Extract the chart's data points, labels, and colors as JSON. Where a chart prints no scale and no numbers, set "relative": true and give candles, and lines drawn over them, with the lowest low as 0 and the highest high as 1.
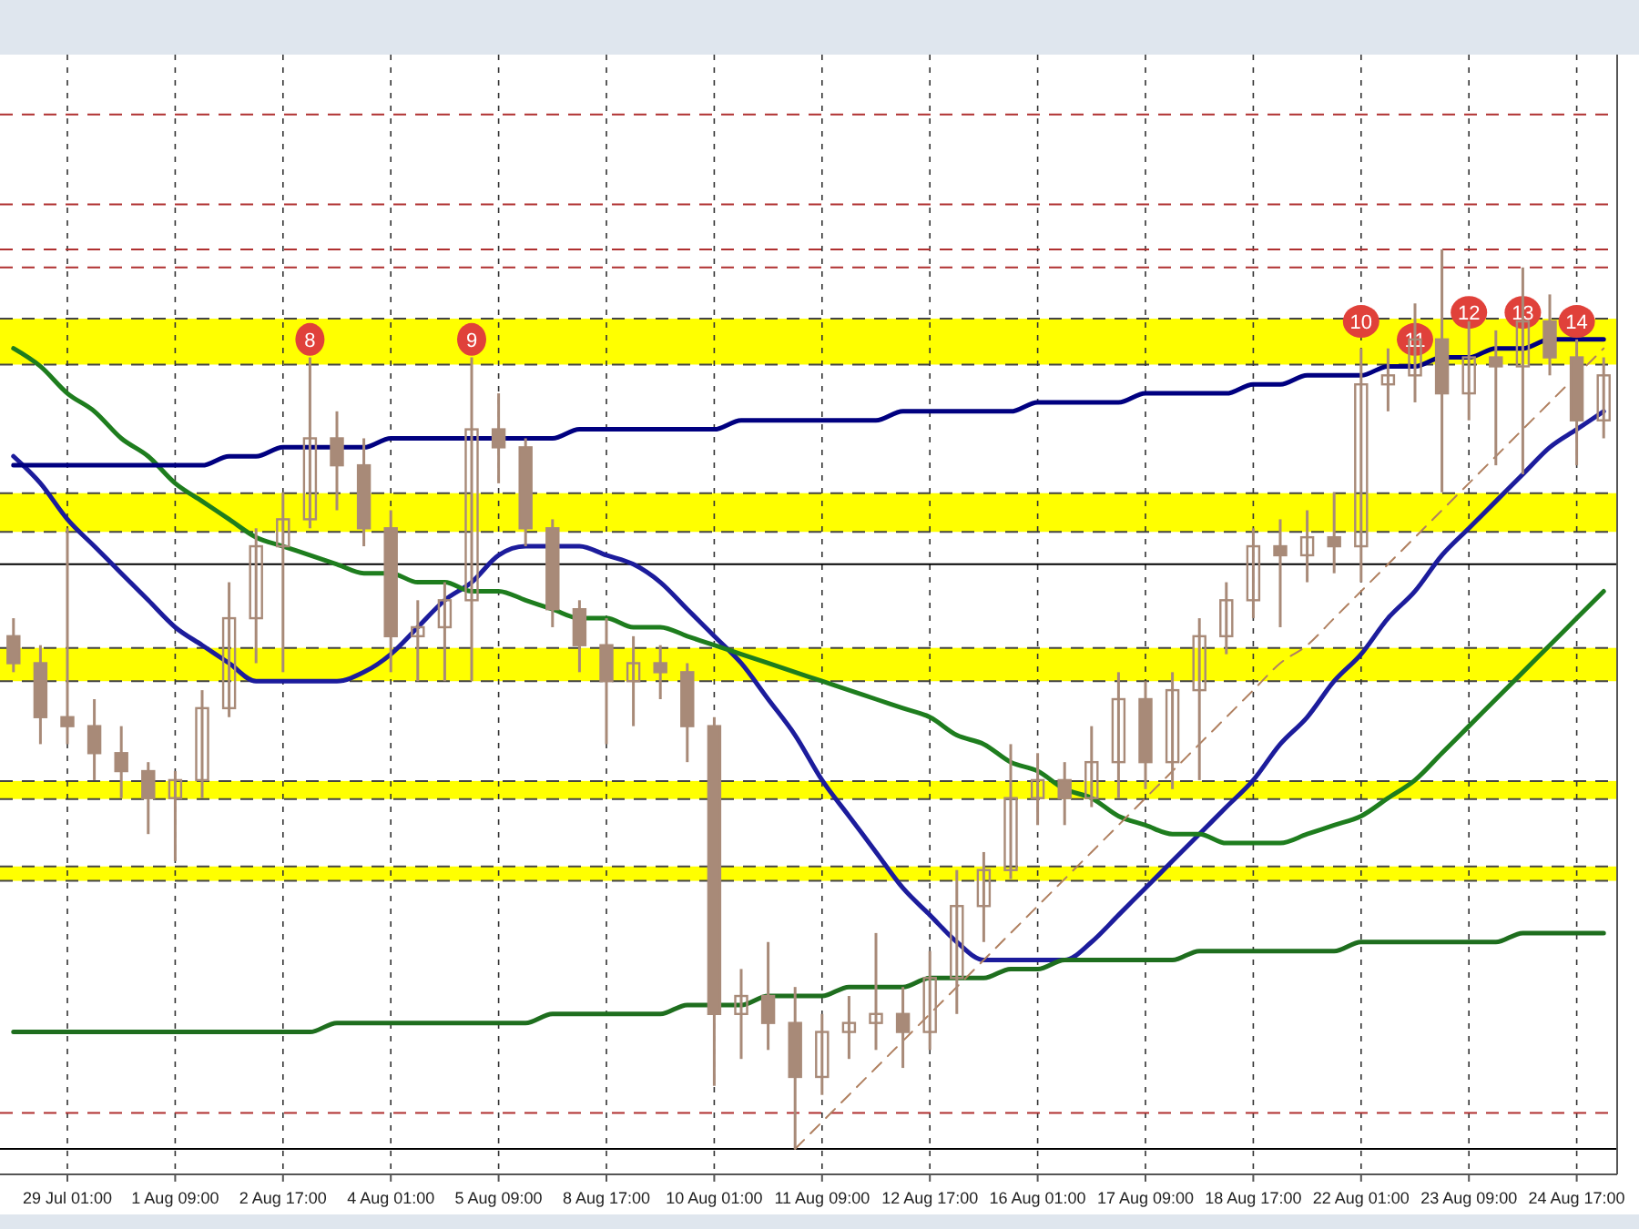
{
  "chart_data": {
    "type": "candlestick",
    "relative": true,
    "grid": "x",
    "color": "#a88a78",
    "categories": [
      null,
      null,
      "29 Jul 01:00",
      null,
      null,
      null,
      "1 Aug 09:00",
      null,
      null,
      null,
      "2 Aug 17:00",
      null,
      null,
      null,
      "4 Aug 01:00",
      null,
      null,
      null,
      "5 Aug 09:00",
      null,
      null,
      null,
      "8 Aug 17:00",
      null,
      null,
      null,
      "10 Aug 01:00",
      null,
      null,
      null,
      "11 Aug 09:00",
      null,
      null,
      null,
      "12 Aug 17:00",
      null,
      null,
      null,
      "16 Aug 01:00",
      null,
      null,
      null,
      "17 Aug 09:00",
      null,
      null,
      null,
      "18 Aug 17:00",
      null,
      null,
      null,
      "22 Aug 01:00",
      null,
      null,
      null,
      "23 Aug 09:00",
      null,
      null,
      null,
      "24 Aug 17:00",
      null
    ],
    "ohlc": [
      [
        0.57,
        0.59,
        0.53,
        0.54
      ],
      [
        0.54,
        0.56,
        0.45,
        0.48
      ],
      [
        0.48,
        0.69,
        0.45,
        0.47
      ],
      [
        0.47,
        0.5,
        0.41,
        0.44
      ],
      [
        0.44,
        0.47,
        0.39,
        0.42
      ],
      [
        0.42,
        0.43,
        0.35,
        0.39
      ],
      [
        0.39,
        0.42,
        0.32,
        0.41
      ],
      [
        0.41,
        0.51,
        0.39,
        0.49
      ],
      [
        0.49,
        0.63,
        0.48,
        0.59
      ],
      [
        0.59,
        0.69,
        0.54,
        0.67
      ],
      [
        0.67,
        0.73,
        0.53,
        0.7
      ],
      [
        0.7,
        0.88,
        0.69,
        0.79
      ],
      [
        0.79,
        0.82,
        0.71,
        0.76
      ],
      [
        0.76,
        0.79,
        0.67,
        0.69
      ],
      [
        0.69,
        0.71,
        0.53,
        0.57
      ],
      [
        0.57,
        0.61,
        0.52,
        0.58
      ],
      [
        0.58,
        0.63,
        0.52,
        0.61
      ],
      [
        0.61,
        0.88,
        0.52,
        0.8
      ],
      [
        0.8,
        0.84,
        0.74,
        0.78
      ],
      [
        0.78,
        0.79,
        0.67,
        0.69
      ],
      [
        0.69,
        0.7,
        0.58,
        0.6
      ],
      [
        0.6,
        0.61,
        0.53,
        0.56
      ],
      [
        0.56,
        0.59,
        0.45,
        0.52
      ],
      [
        0.52,
        0.57,
        0.47,
        0.54
      ],
      [
        0.54,
        0.56,
        0.5,
        0.53
      ],
      [
        0.53,
        0.54,
        0.43,
        0.47
      ],
      [
        0.47,
        0.48,
        0.07,
        0.15
      ],
      [
        0.15,
        0.2,
        0.1,
        0.17
      ],
      [
        0.17,
        0.23,
        0.11,
        0.14
      ],
      [
        0.14,
        0.18,
        0,
        0.08
      ],
      [
        0.08,
        0.15,
        0.06,
        0.13
      ],
      [
        0.13,
        0.17,
        0.1,
        0.14
      ],
      [
        0.14,
        0.24,
        0.11,
        0.15
      ],
      [
        0.15,
        0.18,
        0.09,
        0.13
      ],
      [
        0.13,
        0.22,
        0.11,
        0.19
      ],
      [
        0.19,
        0.31,
        0.15,
        0.27
      ],
      [
        0.27,
        0.33,
        0.23,
        0.31
      ],
      [
        0.31,
        0.45,
        0.3,
        0.39
      ],
      [
        0.39,
        0.44,
        0.36,
        0.41
      ],
      [
        0.41,
        0.43,
        0.36,
        0.39
      ],
      [
        0.39,
        0.47,
        0.38,
        0.43
      ],
      [
        0.43,
        0.53,
        0.39,
        0.5
      ],
      [
        0.5,
        0.52,
        0.4,
        0.43
      ],
      [
        0.43,
        0.53,
        0.4,
        0.51
      ],
      [
        0.51,
        0.59,
        0.41,
        0.57
      ],
      [
        0.57,
        0.63,
        0.55,
        0.61
      ],
      [
        0.61,
        0.69,
        0.59,
        0.67
      ],
      [
        0.67,
        0.7,
        0.58,
        0.66
      ],
      [
        0.66,
        0.71,
        0.63,
        0.68
      ],
      [
        0.68,
        0.73,
        0.64,
        0.67
      ],
      [
        0.67,
        0.89,
        0.63,
        0.85
      ],
      [
        0.85,
        0.89,
        0.82,
        0.86
      ],
      [
        0.86,
        0.94,
        0.83,
        0.9
      ],
      [
        0.9,
        1.0,
        0.73,
        0.84
      ],
      [
        0.84,
        0.92,
        0.81,
        0.88
      ],
      [
        0.88,
        0.91,
        0.76,
        0.87
      ],
      [
        0.87,
        0.98,
        0.75,
        0.92
      ],
      [
        0.92,
        0.95,
        0.86,
        0.88
      ],
      [
        0.88,
        0.9,
        0.76,
        0.81
      ],
      [
        0.81,
        0.88,
        0.79,
        0.86
      ]
    ],
    "series": [
      {
        "type": "line",
        "color": "#1c1c9c",
        "values": [
          0.77,
          0.74,
          0.7,
          0.67,
          0.64,
          0.61,
          0.58,
          0.56,
          0.54,
          0.52,
          0.52,
          0.52,
          0.52,
          0.53,
          0.55,
          0.58,
          0.61,
          0.63,
          0.66,
          0.67,
          0.67,
          0.67,
          0.66,
          0.65,
          0.63,
          0.6,
          0.57,
          0.54,
          0.5,
          0.46,
          0.41,
          0.37,
          0.33,
          0.29,
          0.26,
          0.23,
          0.21,
          0.21,
          0.21,
          0.21,
          0.23,
          0.26,
          0.29,
          0.32,
          0.35,
          0.38,
          0.41,
          0.45,
          0.48,
          0.52,
          0.55,
          0.59,
          0.62,
          0.66,
          0.69,
          0.72,
          0.75,
          0.78,
          0.8,
          0.82
        ]
      },
      {
        "type": "line",
        "color": "#1e7d1e",
        "values": [
          0.89,
          0.87,
          0.84,
          0.82,
          0.79,
          0.77,
          0.74,
          0.72,
          0.7,
          0.68,
          0.67,
          0.66,
          0.65,
          0.64,
          0.64,
          0.63,
          0.63,
          0.62,
          0.62,
          0.61,
          0.6,
          0.59,
          0.59,
          0.58,
          0.58,
          0.57,
          0.56,
          0.55,
          0.54,
          0.53,
          0.52,
          0.51,
          0.5,
          0.49,
          0.48,
          0.46,
          0.45,
          0.43,
          0.42,
          0.4,
          0.39,
          0.37,
          0.36,
          0.35,
          0.35,
          0.34,
          0.34,
          0.34,
          0.35,
          0.36,
          0.37,
          0.39,
          0.41,
          0.44,
          0.47,
          0.5,
          0.53,
          0.56,
          0.59,
          0.62
        ]
      },
      {
        "type": "line",
        "color": "#000080",
        "values": [
          0.76,
          0.76,
          0.76,
          0.76,
          0.76,
          0.76,
          0.76,
          0.76,
          0.77,
          0.77,
          0.78,
          0.78,
          0.78,
          0.78,
          0.79,
          0.79,
          0.79,
          0.79,
          0.79,
          0.79,
          0.79,
          0.8,
          0.8,
          0.8,
          0.8,
          0.8,
          0.8,
          0.81,
          0.81,
          0.81,
          0.81,
          0.81,
          0.81,
          0.82,
          0.82,
          0.82,
          0.82,
          0.82,
          0.83,
          0.83,
          0.83,
          0.83,
          0.84,
          0.84,
          0.84,
          0.84,
          0.85,
          0.85,
          0.86,
          0.86,
          0.86,
          0.87,
          0.87,
          0.88,
          0.88,
          0.89,
          0.89,
          0.9,
          0.9,
          0.9
        ]
      },
      {
        "type": "line",
        "color": "#1e6e1e",
        "values": [
          0.13,
          0.13,
          0.13,
          0.13,
          0.13,
          0.13,
          0.13,
          0.13,
          0.13,
          0.13,
          0.13,
          0.13,
          0.14,
          0.14,
          0.14,
          0.14,
          0.14,
          0.14,
          0.14,
          0.14,
          0.15,
          0.15,
          0.15,
          0.15,
          0.15,
          0.16,
          0.16,
          0.16,
          0.17,
          0.17,
          0.17,
          0.18,
          0.18,
          0.18,
          0.19,
          0.19,
          0.19,
          0.2,
          0.2,
          0.21,
          0.21,
          0.21,
          0.21,
          0.21,
          0.22,
          0.22,
          0.22,
          0.22,
          0.22,
          0.22,
          0.23,
          0.23,
          0.23,
          0.23,
          0.23,
          0.23,
          0.24,
          0.24,
          0.24,
          0.24
        ]
      },
      {
        "type": "line",
        "color": "#b08060",
        "line_style": "dashed",
        "values": [
          null,
          null,
          null,
          null,
          null,
          null,
          null,
          null,
          null,
          null,
          null,
          null,
          null,
          null,
          null,
          null,
          null,
          null,
          null,
          null,
          null,
          null,
          null,
          null,
          null,
          null,
          null,
          null,
          null,
          0,
          0.03,
          0.06,
          0.09,
          0.12,
          0.15,
          0.18,
          0.21,
          0.24,
          0.27,
          0.3,
          0.33,
          0.36,
          0.39,
          0.42,
          0.45,
          0.48,
          0.51,
          0.54,
          0.56,
          0.59,
          0.62,
          0.65,
          0.68,
          0.71,
          0.74,
          0.77,
          0.8,
          0.83,
          0.86,
          0.89
        ]
      }
    ],
    "bands": [
      {
        "axis": "y",
        "from": 0.872,
        "to": 0.923,
        "color": "#ffff00"
      },
      {
        "axis": "y",
        "from": 0.686,
        "to": 0.729,
        "color": "#ffff00"
      },
      {
        "axis": "y",
        "from": 0.52,
        "to": 0.557,
        "color": "#ffff00"
      },
      {
        "axis": "y",
        "from": 0.389,
        "to": 0.409,
        "color": "#ffff00"
      },
      {
        "axis": "y",
        "from": 0.298,
        "to": 0.314,
        "color": "#ffff00"
      }
    ],
    "ref_lines": [
      {
        "axis": "y",
        "value": 1.15,
        "color": "#b03030",
        "line_style": "dashed"
      },
      {
        "axis": "y",
        "value": 1.05,
        "color": "#b03030",
        "line_style": "dashed"
      },
      {
        "axis": "y",
        "value": 1.0,
        "color": "#b03030",
        "line_style": "dashed"
      },
      {
        "axis": "y",
        "value": 0.98,
        "color": "#b03030",
        "line_style": "dashed"
      },
      {
        "axis": "y",
        "value": 0.04,
        "color": "#b03030",
        "line_style": "dashed"
      },
      {
        "axis": "y",
        "value": 0.65,
        "color": "#000000",
        "line_style": "solid"
      },
      {
        "axis": "y",
        "value": 0,
        "color": "#000000",
        "line_style": "solid"
      }
    ],
    "annotations": [
      {
        "text": "8",
        "y": 0.9
      },
      {
        "text": "9",
        "y": 0.9
      },
      {
        "text": "10",
        "y": 0.92
      },
      {
        "text": "11",
        "y": 0.9
      },
      {
        "text": "12",
        "y": 0.93
      },
      {
        "text": "13",
        "y": 0.93
      },
      {
        "text": "14",
        "y": 0.92
      }
    ]
  }
}
